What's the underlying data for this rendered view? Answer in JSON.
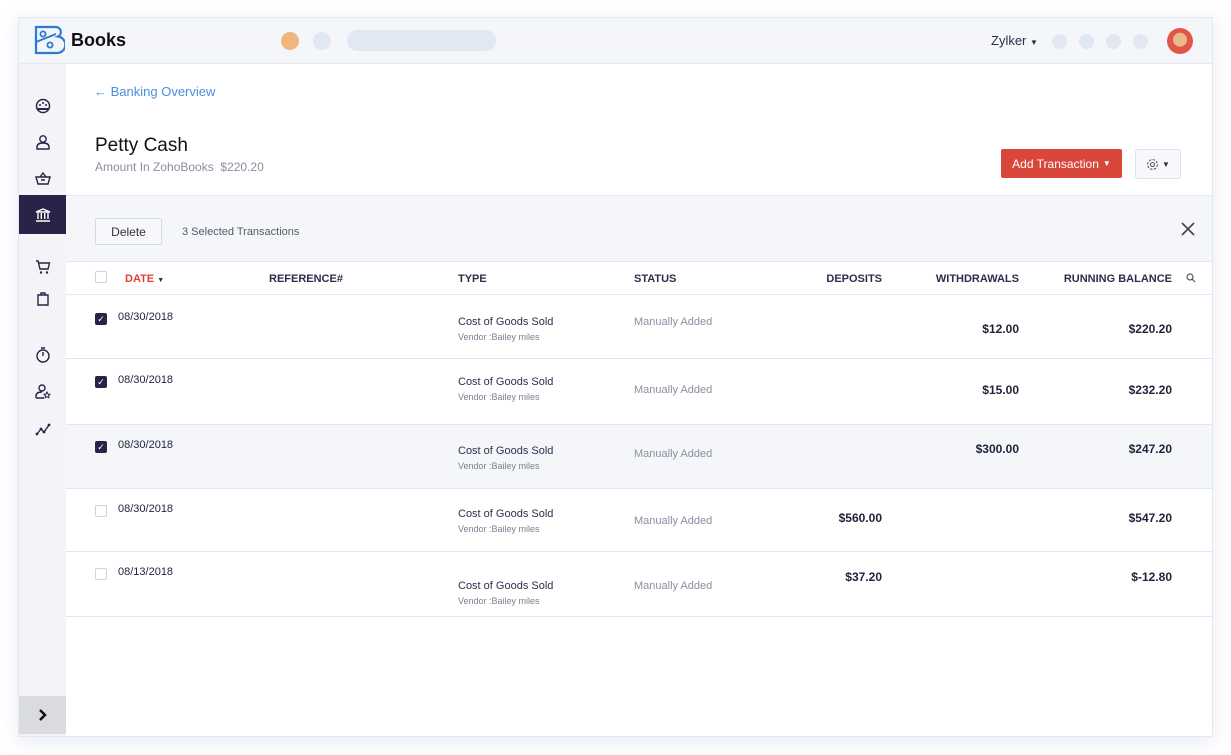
{
  "app": {
    "name": "Books",
    "org": "Zylker"
  },
  "colors": {
    "accent": "#d9473a",
    "nav_active": "#2a2347",
    "link": "#4a8fd8"
  },
  "sidebar": {
    "items": [
      {
        "icon": "dashboard-icon"
      },
      {
        "icon": "contacts-icon"
      },
      {
        "icon": "items-basket-icon"
      },
      {
        "icon": "bank-icon",
        "active": true
      },
      {
        "icon": "sales-cart-icon"
      },
      {
        "icon": "purchases-bag-icon"
      },
      {
        "icon": "timer-icon"
      },
      {
        "icon": "accountant-icon"
      },
      {
        "icon": "reports-icon"
      }
    ]
  },
  "page": {
    "back_label": "Banking Overview",
    "title": "Petty Cash",
    "amount_label": "Amount In ZohoBooks",
    "amount": "$220.20",
    "add_button": "Add Transaction"
  },
  "selection": {
    "delete_label": "Delete",
    "count_label": "3 Selected Transactions"
  },
  "table": {
    "headers": {
      "date": "DATE",
      "reference": "REFERENCE#",
      "type": "TYPE",
      "status": "STATUS",
      "deposits": "DEPOSITS",
      "withdrawals": "WITHDRAWALS",
      "balance": "RUNNING BALANCE"
    },
    "rows": [
      {
        "checked": true,
        "date": "08/30/2018",
        "type": "Cost of Goods Sold",
        "vendor": "Vendor :Bailey miles",
        "status": "Manually Added",
        "deposit": "",
        "withdrawal": "$12.00",
        "balance": "$220.20"
      },
      {
        "checked": true,
        "date": "08/30/2018",
        "type": "Cost of Goods Sold",
        "vendor": "Vendor :Bailey miles",
        "status": "Manually Added",
        "deposit": "",
        "withdrawal": "$15.00",
        "balance": "$232.20"
      },
      {
        "checked": true,
        "date": "08/30/2018",
        "type": "Cost of Goods Sold",
        "vendor": "Vendor :Bailey miles",
        "status": "Manually Added",
        "deposit": "",
        "withdrawal": "$300.00",
        "balance": "$247.20"
      },
      {
        "checked": false,
        "date": "08/30/2018",
        "type": "Cost of Goods Sold",
        "vendor": "Vendor :Bailey miles",
        "status": "Manually Added",
        "deposit": "$560.00",
        "withdrawal": "",
        "balance": "$547.20"
      },
      {
        "checked": false,
        "date": "08/13/2018",
        "type": "Cost of Goods Sold",
        "vendor": "Vendor :Bailey miles",
        "status": "Manually Added",
        "deposit": "$37.20",
        "withdrawal": "",
        "balance": "$-12.80"
      }
    ]
  }
}
